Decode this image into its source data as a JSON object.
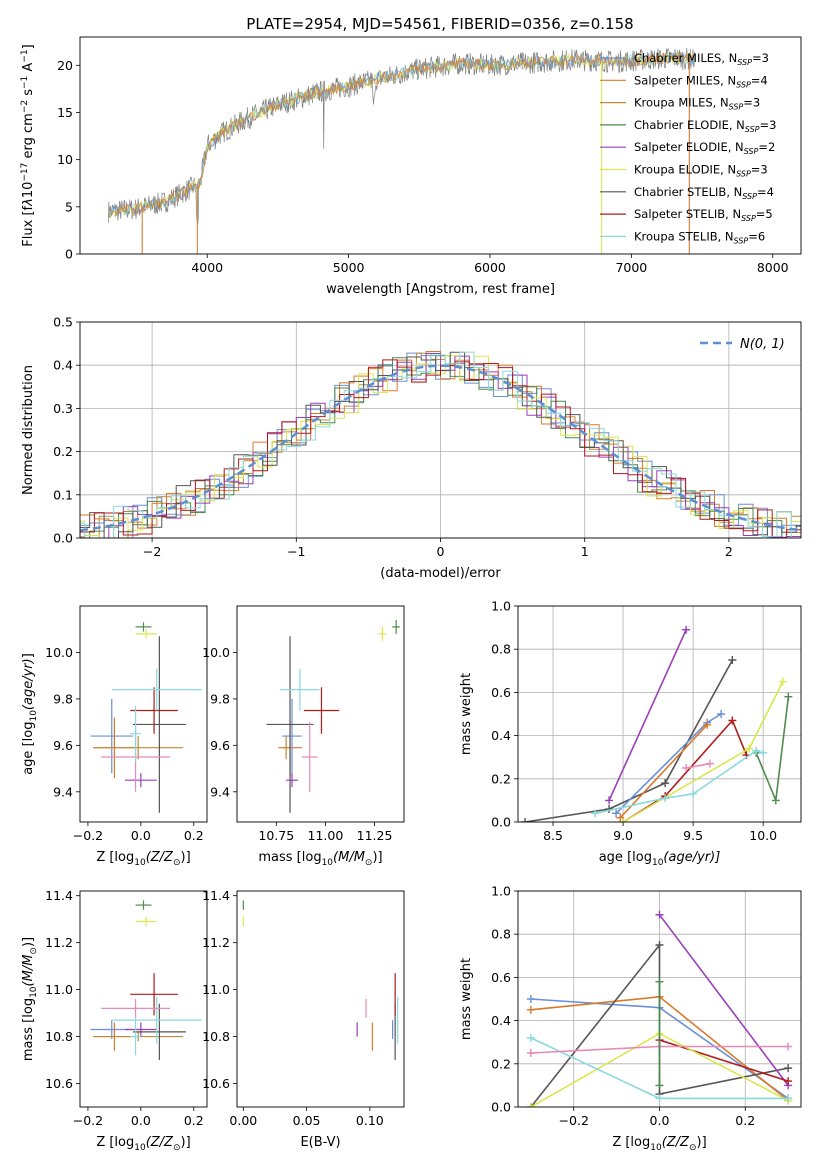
{
  "figure": {
    "title": "PLATE=2954, MJD=54561, FIBERID=0356, z=0.158"
  },
  "colors": {
    "Chabrier MILES": "#6a8fd8",
    "Salpeter MILES": "#d97a2b",
    "Kroupa MILES": "#c08a3a",
    "Chabrier ELODIE": "#4f8a4f",
    "Salpeter ELODIE": "#9a3fb8",
    "Kroupa ELODIE": "#d9e84f",
    "Chabrier STELIB": "#555555",
    "Salpeter STELIB": "#b01a1a",
    "Kroupa STELIB": "#8ad9de",
    "pink": "#e88ab8",
    "normal": "#5b8fd6"
  },
  "chart_data": [
    {
      "id": "spectrum",
      "type": "line",
      "xlabel": "wavelength [Angstrom, rest frame]",
      "ylabel": "Flux [f",
      "xlim": [
        3100,
        8200
      ],
      "ylim": [
        0,
        23
      ],
      "xticks": [
        "4000",
        "5000",
        "6000",
        "7000",
        "8000"
      ],
      "yticks": [
        "0",
        "5",
        "10",
        "15",
        "20"
      ],
      "legend_position": "right",
      "series": [
        {
          "name": "Chabrier MILES, N",
          "nssp": "=3"
        },
        {
          "name": "Salpeter MILES, N",
          "nssp": "=4"
        },
        {
          "name": "Kroupa MILES, N",
          "nssp": "=3"
        },
        {
          "name": "Chabrier ELODIE, N",
          "nssp": "=3"
        },
        {
          "name": "Salpeter ELODIE, N",
          "nssp": "=2"
        },
        {
          "name": "Kroupa ELODIE, N",
          "nssp": "=3"
        },
        {
          "name": "Chabrier STELIB, N",
          "nssp": "=4"
        },
        {
          "name": "Salpeter STELIB, N",
          "nssp": "=5"
        },
        {
          "name": "Kroupa STELIB, N",
          "nssp": "=6"
        }
      ],
      "continuum": {
        "x": [
          3300,
          3500,
          3700,
          3950,
          4000,
          4100,
          4300,
          4500,
          4800,
          5000,
          5200,
          5500,
          5800,
          6000,
          6300,
          6600,
          6900,
          7100,
          7300,
          7450
        ],
        "y": [
          4.5,
          4.8,
          5.5,
          7.5,
          11.5,
          12.8,
          14.5,
          15.8,
          17.2,
          17.8,
          18.5,
          19.6,
          20.2,
          20.0,
          20.3,
          20.6,
          20.4,
          20.6,
          20.8,
          20.6
        ]
      }
    },
    {
      "id": "residuals",
      "type": "histogram",
      "xlabel": "(data-model)/error",
      "ylabel": "Normed distribution",
      "xlim": [
        -2.5,
        2.5
      ],
      "ylim": [
        0,
        0.5
      ],
      "xticks": [
        "−2",
        "−1",
        "0",
        "1",
        "2"
      ],
      "yticks": [
        "0.0",
        "0.1",
        "0.2",
        "0.3",
        "0.4",
        "0.5"
      ],
      "legend": "N(0, 1)",
      "grid": true
    },
    {
      "id": "age-vs-z",
      "type": "errorbar",
      "xlabel": "Z [log",
      "ylabel": "age  [log",
      "xlim": [
        -0.23,
        0.25
      ],
      "ylim": [
        9.27,
        10.2
      ],
      "xticks": [
        "−0.2",
        "0.0",
        "0.2"
      ],
      "yticks": [
        "9.4",
        "9.6",
        "9.8",
        "10.0"
      ],
      "points": [
        {
          "c": "Chabrier MILES",
          "x": -0.11,
          "y": 9.64,
          "xe": 0.08,
          "ye": 0.16
        },
        {
          "c": "Salpeter MILES",
          "x": -0.1,
          "y": 9.59,
          "xe": 0.08,
          "ye": 0.13
        },
        {
          "c": "Kroupa MILES",
          "x": -0.01,
          "y": 9.59,
          "xe": 0.17,
          "ye": 0.05
        },
        {
          "c": "Chabrier ELODIE",
          "x": 0.01,
          "y": 10.11,
          "xe": 0.03,
          "ye": 0.02
        },
        {
          "c": "Salpeter ELODIE",
          "x": 0.0,
          "y": 9.45,
          "xe": 0.06,
          "ye": 0.03
        },
        {
          "c": "Kroupa ELODIE",
          "x": 0.02,
          "y": 10.08,
          "xe": 0.04,
          "ye": 0.02
        },
        {
          "c": "Chabrier STELIB",
          "x": 0.07,
          "y": 9.69,
          "xe": 0.1,
          "ye": 0.38
        },
        {
          "c": "Salpeter STELIB",
          "x": 0.05,
          "y": 9.75,
          "xe": 0.09,
          "ye": 0.1
        },
        {
          "c": "Kroupa STELIB",
          "x": 0.06,
          "y": 9.84,
          "xe": 0.17,
          "ye": 0.09
        },
        {
          "c": "pink",
          "x": -0.02,
          "y": 9.55,
          "xe": 0.13,
          "ye": 0.15
        },
        {
          "c": "Kroupa STELIB",
          "x": -0.02,
          "y": 9.65,
          "xe": 0.02,
          "ye": 0.12
        }
      ]
    },
    {
      "id": "age-vs-mass",
      "type": "errorbar",
      "xlabel": "mass [log",
      "ylabel": "",
      "xlim": [
        10.55,
        11.4
      ],
      "ylim": [
        9.27,
        10.2
      ],
      "xticks": [
        "10.75",
        "11.00",
        "11.25"
      ],
      "yticks": [
        "9.4",
        "9.6",
        "9.8",
        "10.0"
      ],
      "points": [
        {
          "c": "Chabrier MILES",
          "x": 10.83,
          "y": 9.64,
          "xe": 0.05,
          "ye": 0.16
        },
        {
          "c": "Salpeter MILES",
          "x": 10.82,
          "y": 9.59,
          "xe": 0.06,
          "ye": 0.12
        },
        {
          "c": "Kroupa MILES",
          "x": 10.8,
          "y": 9.59,
          "xe": 0.02,
          "ye": 0.05
        },
        {
          "c": "Chabrier ELODIE",
          "x": 11.36,
          "y": 10.11,
          "xe": 0.02,
          "ye": 0.03
        },
        {
          "c": "Salpeter ELODIE",
          "x": 10.83,
          "y": 9.45,
          "xe": 0.03,
          "ye": 0.03
        },
        {
          "c": "Kroupa ELODIE",
          "x": 11.29,
          "y": 10.08,
          "xe": 0.02,
          "ye": 0.03
        },
        {
          "c": "Chabrier STELIB",
          "x": 10.82,
          "y": 9.69,
          "xe": 0.12,
          "ye": 0.38
        },
        {
          "c": "Salpeter STELIB",
          "x": 10.98,
          "y": 9.75,
          "xe": 0.09,
          "ye": 0.1
        },
        {
          "c": "Kroupa STELIB",
          "x": 10.87,
          "y": 9.84,
          "xe": 0.1,
          "ye": 0.09
        },
        {
          "c": "pink",
          "x": 10.92,
          "y": 9.55,
          "xe": 0.04,
          "ye": 0.15
        }
      ]
    },
    {
      "id": "weight-vs-age",
      "type": "line",
      "xlabel": "age  [log",
      "ylabel": "mass weight",
      "xlim": [
        8.25,
        10.27
      ],
      "ylim": [
        0,
        1.0
      ],
      "xticks": [
        "8.5",
        "9.0",
        "9.5",
        "10.0"
      ],
      "yticks": [
        "0.0",
        "0.2",
        "0.4",
        "0.6",
        "0.8",
        "1.0"
      ],
      "grid": true,
      "series": [
        {
          "c": "Salpeter ELODIE",
          "x": [
            8.9,
            9.45
          ],
          "y": [
            0.1,
            0.89
          ]
        },
        {
          "c": "Chabrier STELIB",
          "x": [
            8.3,
            8.9,
            9.3,
            9.78
          ],
          "y": [
            0.0,
            0.06,
            0.18,
            0.75
          ]
        },
        {
          "c": "Chabrier MILES",
          "x": [
            8.95,
            9.6,
            9.7
          ],
          "y": [
            0.04,
            0.46,
            0.5
          ]
        },
        {
          "c": "Salpeter MILES",
          "x": [
            8.98,
            9.6
          ],
          "y": [
            0.02,
            0.45
          ]
        },
        {
          "c": "Salpeter STELIB",
          "x": [
            9.0,
            9.3,
            9.78,
            9.88
          ],
          "y": [
            0.0,
            0.12,
            0.47,
            0.31
          ]
        },
        {
          "c": "Kroupa ELODIE",
          "x": [
            9.0,
            9.9,
            10.14
          ],
          "y": [
            0.0,
            0.34,
            0.65
          ]
        },
        {
          "c": "Chabrier ELODIE",
          "x": [
            9.95,
            10.09,
            10.18
          ],
          "y": [
            0.32,
            0.1,
            0.58
          ]
        },
        {
          "c": "Kroupa STELIB",
          "x": [
            8.8,
            9.3,
            9.5,
            9.95,
            10.0
          ],
          "y": [
            0.04,
            0.11,
            0.13,
            0.33,
            0.32
          ]
        },
        {
          "c": "pink",
          "x": [
            9.45,
            9.62
          ],
          "y": [
            0.25,
            0.27
          ]
        }
      ]
    },
    {
      "id": "mass-vs-z",
      "type": "errorbar",
      "xlabel": "Z [log",
      "ylabel": "mass [log",
      "xlim": [
        -0.23,
        0.25
      ],
      "ylim": [
        10.5,
        11.42
      ],
      "xticks": [
        "−0.2",
        "0.0",
        "0.2"
      ],
      "yticks": [
        "10.6",
        "10.8",
        "11.0",
        "11.2",
        "11.4"
      ],
      "points": [
        {
          "c": "Chabrier MILES",
          "x": -0.11,
          "y": 10.83,
          "xe": 0.08,
          "ye": 0.04
        },
        {
          "c": "Salpeter MILES",
          "x": -0.1,
          "y": 10.8,
          "xe": 0.08,
          "ye": 0.06
        },
        {
          "c": "Kroupa MILES",
          "x": -0.01,
          "y": 10.8,
          "xe": 0.17,
          "ye": 0.02
        },
        {
          "c": "Chabrier ELODIE",
          "x": 0.01,
          "y": 11.36,
          "xe": 0.03,
          "ye": 0.02
        },
        {
          "c": "Salpeter ELODIE",
          "x": 0.0,
          "y": 10.83,
          "xe": 0.06,
          "ye": 0.03
        },
        {
          "c": "Kroupa ELODIE",
          "x": 0.02,
          "y": 11.29,
          "xe": 0.04,
          "ye": 0.02
        },
        {
          "c": "Chabrier STELIB",
          "x": 0.07,
          "y": 10.82,
          "xe": 0.1,
          "ye": 0.12
        },
        {
          "c": "Salpeter STELIB",
          "x": 0.05,
          "y": 10.98,
          "xe": 0.09,
          "ye": 0.09
        },
        {
          "c": "Kroupa STELIB",
          "x": 0.06,
          "y": 10.87,
          "xe": 0.17,
          "ye": 0.1
        },
        {
          "c": "pink",
          "x": -0.02,
          "y": 10.92,
          "xe": 0.13,
          "ye": 0.04
        },
        {
          "c": "Kroupa STELIB",
          "x": -0.02,
          "y": 10.8,
          "xe": 0.02,
          "ye": 0.08
        }
      ]
    },
    {
      "id": "mass-vs-ebv",
      "type": "errorbar",
      "xlabel": "E(B-V)",
      "ylabel": "",
      "xlim": [
        -0.005,
        0.127
      ],
      "ylim": [
        10.5,
        11.42
      ],
      "xticks": [
        "0.00",
        "0.05",
        "0.10"
      ],
      "yticks": [
        "10.6",
        "10.8",
        "11.0",
        "11.2",
        "11.4"
      ],
      "points": [
        {
          "c": "Chabrier ELODIE",
          "x": 0.0,
          "y": 11.36,
          "xe": 0,
          "ye": 0.02
        },
        {
          "c": "Kroupa ELODIE",
          "x": 0.0,
          "y": 11.29,
          "xe": 0,
          "ye": 0.02
        },
        {
          "c": "Salpeter ELODIE",
          "x": 0.09,
          "y": 10.83,
          "xe": 0,
          "ye": 0.03
        },
        {
          "c": "pink",
          "x": 0.097,
          "y": 10.92,
          "xe": 0,
          "ye": 0.04
        },
        {
          "c": "Salpeter MILES",
          "x": 0.102,
          "y": 10.8,
          "xe": 0,
          "ye": 0.06
        },
        {
          "c": "Chabrier MILES",
          "x": 0.118,
          "y": 10.83,
          "xe": 0,
          "ye": 0.04
        },
        {
          "c": "Chabrier STELIB",
          "x": 0.12,
          "y": 10.82,
          "xe": 0,
          "ye": 0.12
        },
        {
          "c": "Salpeter STELIB",
          "x": 0.12,
          "y": 10.98,
          "xe": 0,
          "ye": 0.09
        },
        {
          "c": "Kroupa STELIB",
          "x": 0.122,
          "y": 10.87,
          "xe": 0,
          "ye": 0.1
        }
      ]
    },
    {
      "id": "weight-vs-z",
      "type": "line",
      "xlabel": "Z [log",
      "ylabel": "mass weight",
      "xlim": [
        -0.33,
        0.33
      ],
      "ylim": [
        0,
        1.0
      ],
      "xticks": [
        "−0.2",
        "0.0",
        "0.2"
      ],
      "yticks": [
        "0.0",
        "0.2",
        "0.4",
        "0.6",
        "0.8",
        "1.0"
      ],
      "grid": true,
      "series": [
        {
          "c": "Chabrier MILES",
          "x": [
            -0.3,
            0.0,
            0.3
          ],
          "y": [
            0.5,
            0.46,
            0.04
          ]
        },
        {
          "c": "Salpeter MILES",
          "x": [
            -0.3,
            0.0,
            0.3
          ],
          "y": [
            0.45,
            0.51,
            0.03
          ]
        },
        {
          "c": "Chabrier STELIB",
          "x": [
            -0.3,
            0.0,
            0.0,
            0.3
          ],
          "y": [
            0.0,
            0.75,
            0.06,
            0.18
          ]
        },
        {
          "c": "Salpeter ELODIE",
          "x": [
            0.0,
            0.3
          ],
          "y": [
            0.89,
            0.1
          ]
        },
        {
          "c": "Salpeter STELIB",
          "x": [
            0.0,
            0.3
          ],
          "y": [
            0.31,
            0.12
          ]
        },
        {
          "c": "Kroupa ELODIE",
          "x": [
            -0.3,
            0.0,
            0.3
          ],
          "y": [
            0.0,
            0.34,
            0.03
          ]
        },
        {
          "c": "Kroupa STELIB",
          "x": [
            -0.3,
            0.0,
            0.3
          ],
          "y": [
            0.32,
            0.04,
            0.04
          ]
        },
        {
          "c": "pink",
          "x": [
            -0.3,
            0.0,
            0.3
          ],
          "y": [
            0.25,
            0.28,
            0.28
          ]
        },
        {
          "c": "Chabrier ELODIE",
          "x": [
            0.0,
            0.0
          ],
          "y": [
            0.1,
            0.58
          ]
        }
      ]
    }
  ]
}
